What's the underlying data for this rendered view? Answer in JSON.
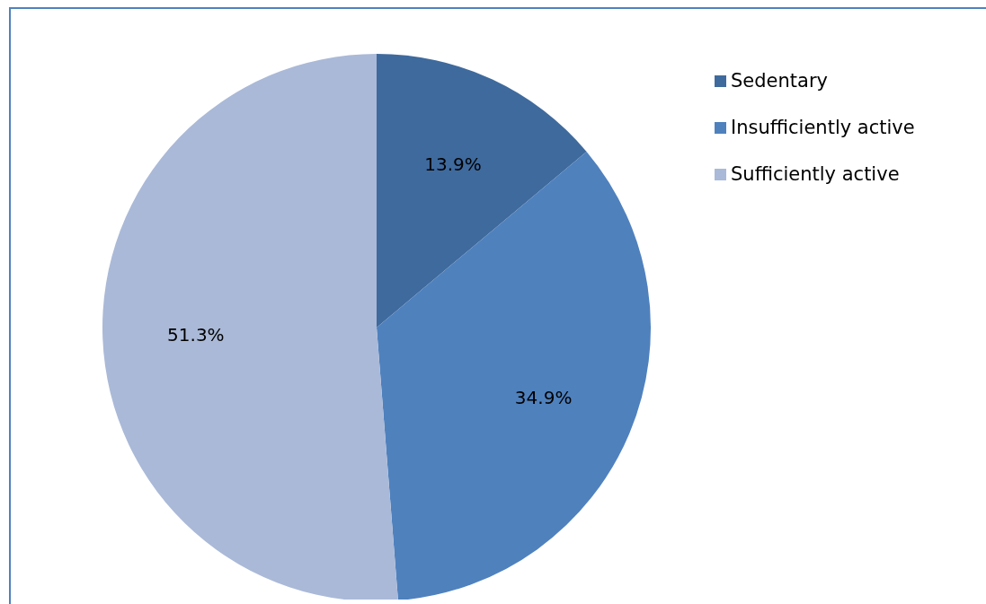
{
  "chart_data": {
    "type": "pie",
    "categories": [
      "Sedentary",
      "Insufficiently active",
      "Sufficiently active"
    ],
    "values": [
      13.9,
      34.9,
      51.3
    ],
    "colors": [
      "#3f6a9d",
      "#4f81bd",
      "#aab9d7"
    ],
    "value_labels": [
      "13.9%",
      "34.9%",
      "51.3%"
    ],
    "legend": "top right"
  }
}
